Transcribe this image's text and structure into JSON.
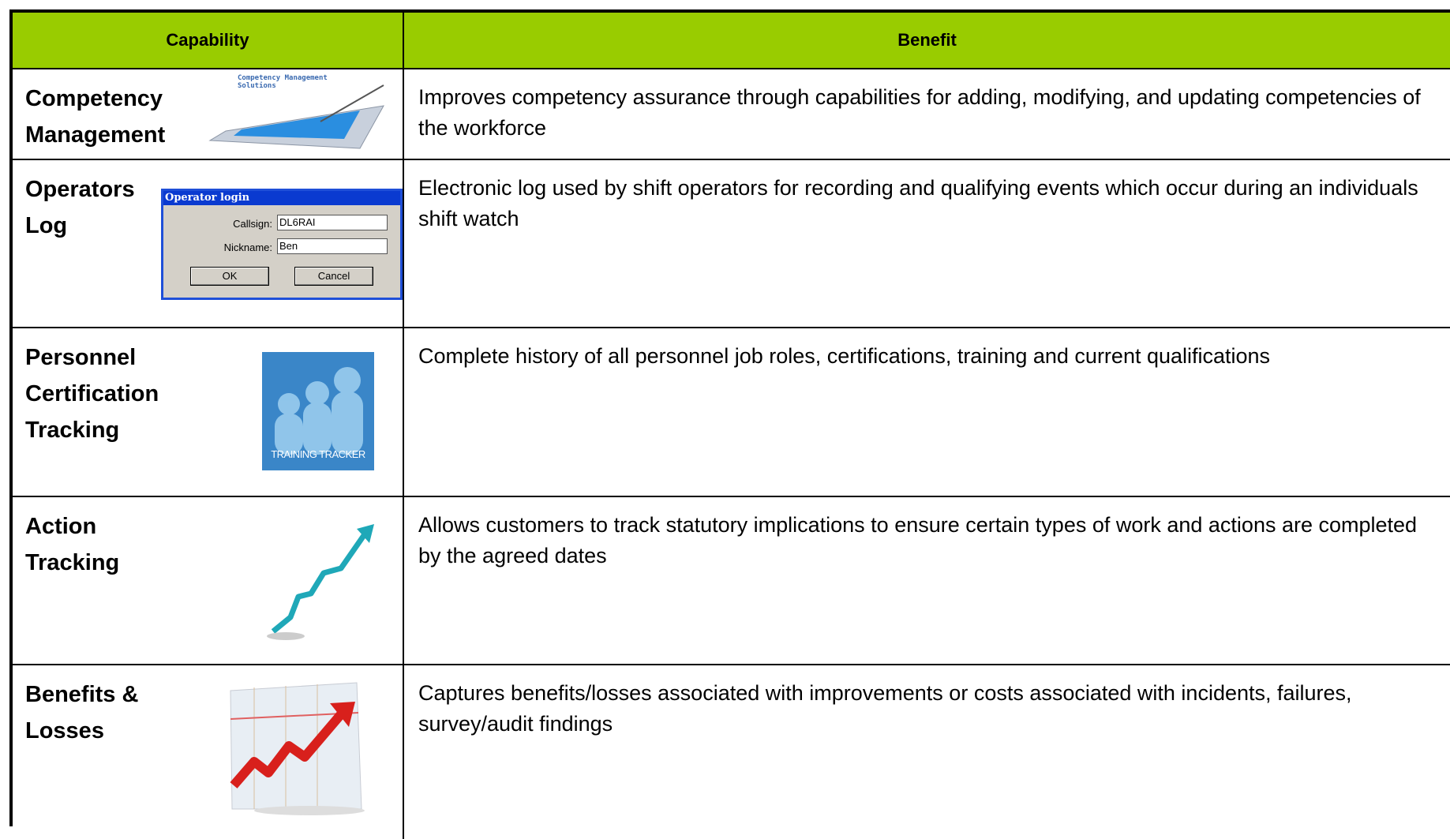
{
  "table": {
    "headers": [
      "Capability",
      "Benefit"
    ],
    "rows": [
      {
        "capability": "Competency Management",
        "benefit": "Improves competency assurance through capabilities for adding, modifying, and updating competencies of the workforce",
        "icon_text": "Competency Management Solutions"
      },
      {
        "capability": "Operators Log",
        "benefit": "Electronic log used by shift operators for recording and qualifying events which occur during an individuals shift watch",
        "dialog": {
          "title": "Operator login",
          "callsign_label": "Callsign:",
          "callsign": "DL6RAI",
          "nickname_label": "Nickname:",
          "nickname": "Ben",
          "ok": "OK",
          "cancel": "Cancel"
        }
      },
      {
        "capability": "Personnel Certification Tracking",
        "benefit": "Complete history of all personnel job roles, certifications, training and current qualifications",
        "icon_text": "TRAINING TRACKER"
      },
      {
        "capability": "Action Tracking",
        "benefit": "Allows customers to track statutory implications to ensure certain types of work and actions are completed by the agreed dates"
      },
      {
        "capability": "Benefits & Losses",
        "benefit": "Captures benefits/losses associated with improvements or costs associated with incidents, failures, survey/audit findings"
      }
    ]
  }
}
